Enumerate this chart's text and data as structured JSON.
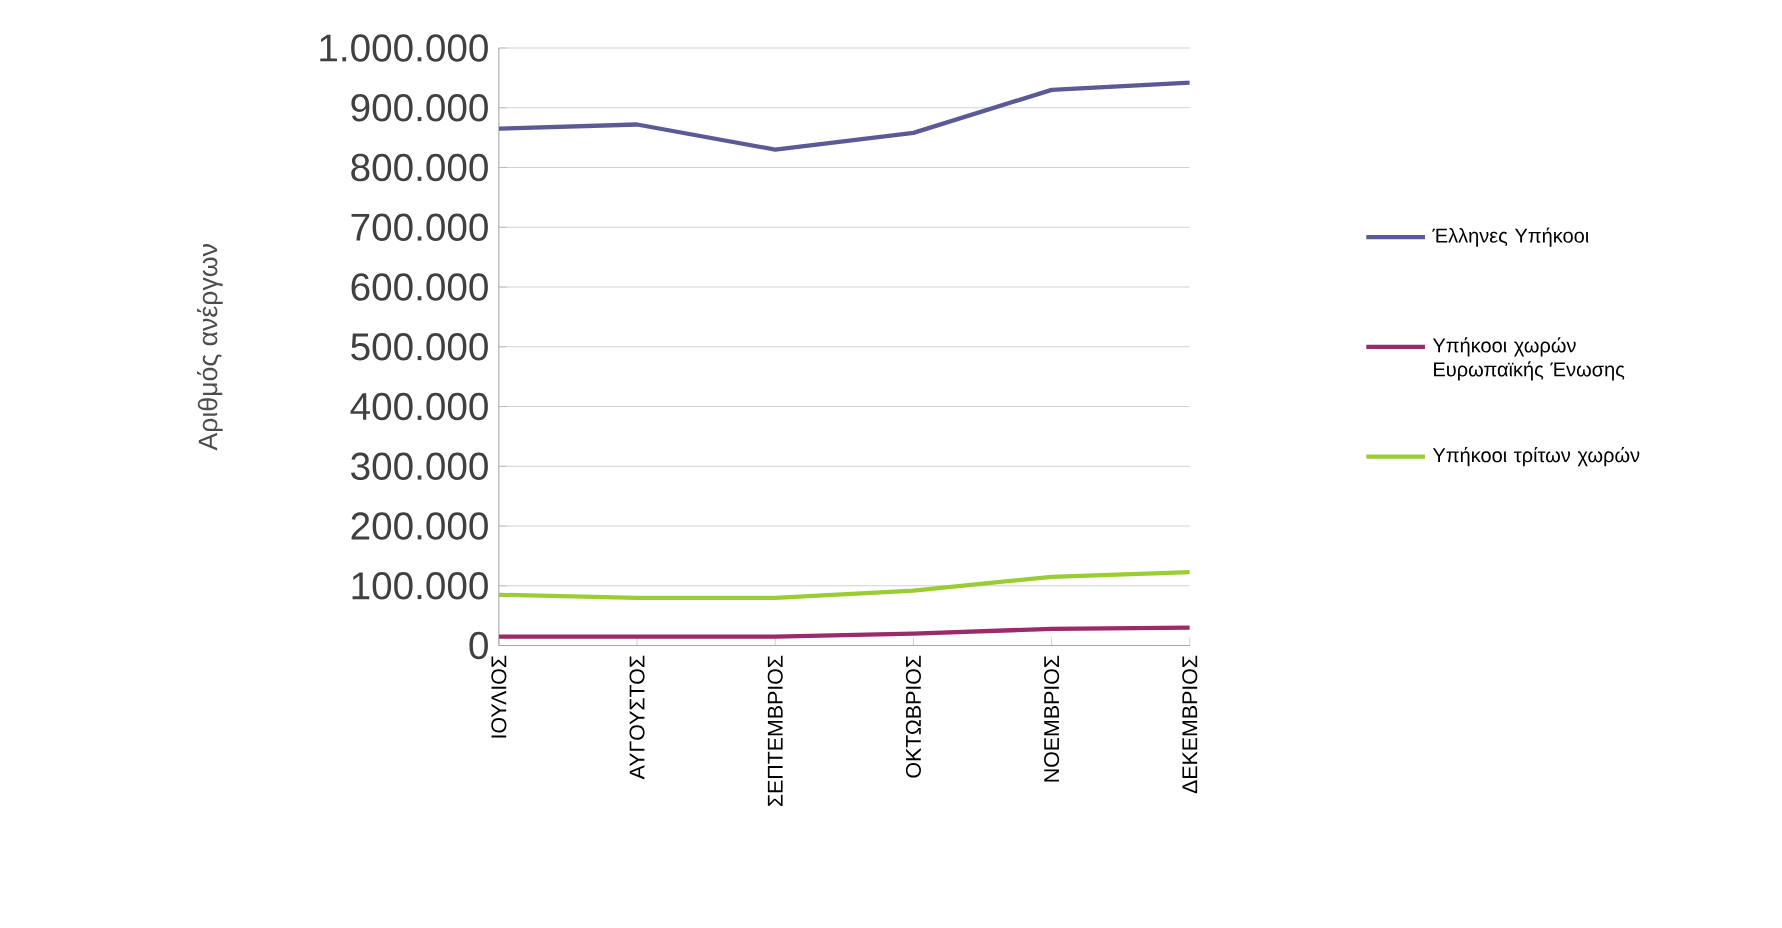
{
  "chart_data": {
    "type": "line",
    "ylabel": "Αριθμός ανέργων",
    "categories": [
      "ΙΟΥΛΙΟΣ",
      "ΑΥΓΟΥΣΤΟΣ",
      "ΣΕΠΤΕΜΒΡΙΟΣ",
      "ΟΚΤΩΒΡΙΟΣ",
      "ΝΟΕΜΒΡΙΟΣ",
      "ΔΕΚΕΜΒΡΙΟΣ"
    ],
    "series": [
      {
        "name": "Έλληνες Υπήκοοι",
        "color": "#5a5a96",
        "values": [
          865000,
          872000,
          830000,
          858000,
          930000,
          942000
        ]
      },
      {
        "name": "Υπήκοοι χωρών Ευρωπαϊκής Ένωσης",
        "color": "#9a2a6a",
        "values": [
          15000,
          15000,
          15000,
          20000,
          28000,
          30000
        ]
      },
      {
        "name": "Υπήκοοι τρίτων χωρών",
        "color": "#9acd32",
        "values": [
          85000,
          80000,
          80000,
          92000,
          115000,
          123000
        ]
      }
    ],
    "ylim": [
      0,
      1000000
    ],
    "yticks": [
      0,
      {
        "value": 100000,
        "label": "100.000"
      },
      {
        "value": 200000,
        "label": "200.000"
      },
      {
        "value": 300000,
        "label": "300.000"
      },
      {
        "value": 400000,
        "label": "400.000"
      },
      {
        "value": 500000,
        "label": "500.000"
      },
      {
        "value": 600000,
        "label": "600.000"
      },
      {
        "value": 700000,
        "label": "700.000"
      },
      {
        "value": 800000,
        "label": "800.000"
      },
      {
        "value": 900000,
        "label": "900.000"
      },
      {
        "value": 1000000,
        "label": "1.000.000"
      }
    ],
    "grid": "y",
    "legend": "right",
    "marker": "none",
    "line_style": "solid"
  }
}
